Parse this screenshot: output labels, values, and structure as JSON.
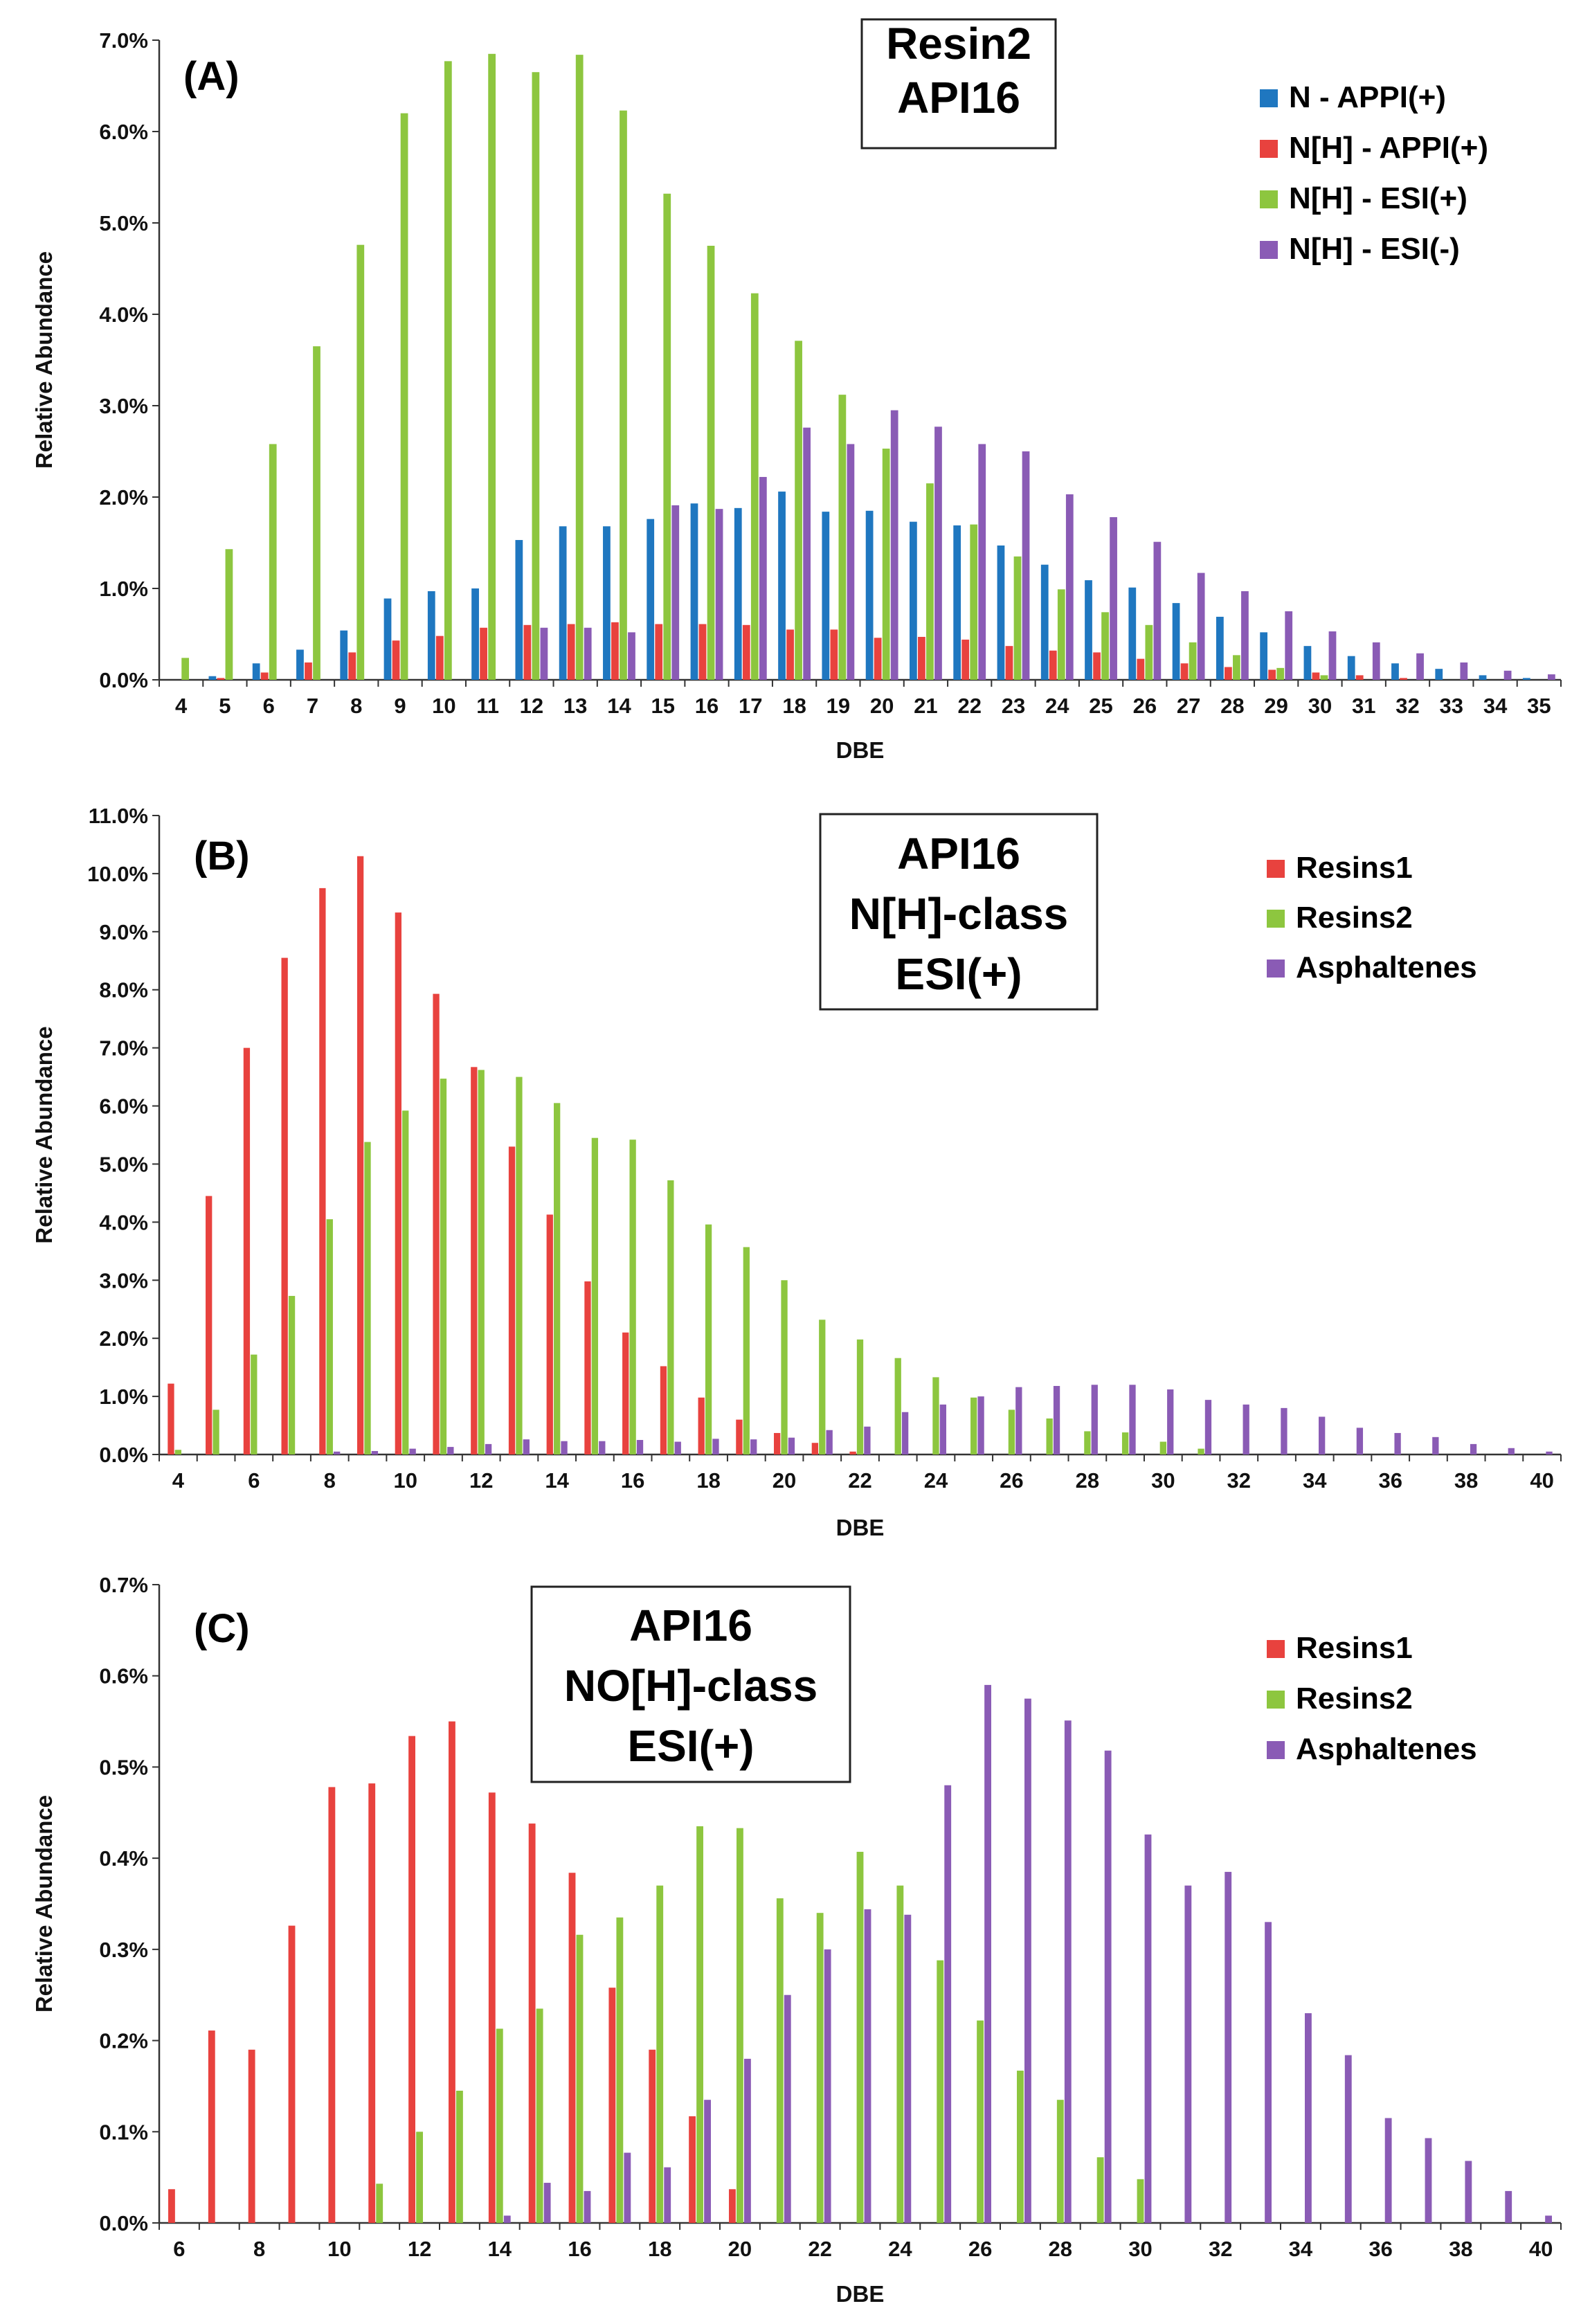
{
  "chart_data": [
    {
      "type": "bar",
      "panel_label": "(A)",
      "annotation": [
        "Resin2",
        "API16"
      ],
      "xlabel": "DBE",
      "ylabel": "Relative Abundance",
      "ylim": [
        0,
        7.0
      ],
      "ytick_step": 1.0,
      "ytick_decimals": 1,
      "ytick_suffix": "%",
      "grid": false,
      "legend_position": "top-right",
      "categories": [
        4,
        5,
        6,
        7,
        8,
        9,
        10,
        11,
        12,
        13,
        14,
        15,
        16,
        17,
        18,
        19,
        20,
        21,
        22,
        23,
        24,
        25,
        26,
        27,
        28,
        29,
        30,
        31,
        32,
        33,
        34,
        35
      ],
      "x_tick_labels": [
        "4",
        "5",
        "6",
        "7",
        "8",
        "9",
        "10",
        "11",
        "12",
        "13",
        "14",
        "15",
        "16",
        "17",
        "18",
        "19",
        "20",
        "21",
        "22",
        "23",
        "24",
        "25",
        "26",
        "27",
        "28",
        "29",
        "30",
        "31",
        "32",
        "33",
        "34",
        "35"
      ],
      "series": [
        {
          "name": "N - APPI(+)",
          "color": "#1f77c0",
          "values": [
            0.0,
            0.04,
            0.18,
            0.33,
            0.54,
            0.89,
            0.97,
            1.0,
            1.53,
            1.68,
            1.68,
            1.76,
            1.93,
            1.88,
            2.06,
            1.84,
            1.85,
            1.73,
            1.69,
            1.47,
            1.26,
            1.09,
            1.01,
            0.84,
            0.69,
            0.52,
            0.37,
            0.26,
            0.18,
            0.12,
            0.05,
            0.02
          ]
        },
        {
          "name": "N[H] - APPI(+)",
          "color": "#e8423e",
          "values": [
            0.0,
            0.02,
            0.08,
            0.19,
            0.3,
            0.43,
            0.48,
            0.57,
            0.6,
            0.61,
            0.63,
            0.61,
            0.61,
            0.6,
            0.55,
            0.55,
            0.46,
            0.47,
            0.44,
            0.37,
            0.32,
            0.3,
            0.23,
            0.18,
            0.14,
            0.11,
            0.08,
            0.05,
            0.02,
            0.0,
            0.0,
            0.0
          ]
        },
        {
          "name": "N[H] - ESI(+)",
          "color": "#8dc63f",
          "values": [
            0.24,
            1.43,
            2.58,
            3.65,
            4.76,
            6.2,
            6.77,
            6.85,
            6.65,
            6.84,
            6.23,
            5.32,
            4.75,
            4.23,
            3.71,
            3.12,
            2.53,
            2.15,
            1.7,
            1.35,
            0.99,
            0.74,
            0.6,
            0.41,
            0.27,
            0.13,
            0.05,
            0.0,
            0.0,
            0.0,
            0.0,
            0.0
          ]
        },
        {
          "name": "N[H] - ESI(-)",
          "color": "#8a5bb5",
          "values": [
            0.0,
            0.0,
            0.0,
            0.0,
            0.0,
            0.0,
            0.0,
            0.0,
            0.57,
            0.57,
            0.52,
            1.91,
            1.87,
            2.22,
            2.76,
            2.58,
            2.95,
            2.77,
            2.58,
            2.5,
            2.03,
            1.78,
            1.51,
            1.17,
            0.97,
            0.75,
            0.53,
            0.41,
            0.29,
            0.19,
            0.1,
            0.06
          ]
        }
      ]
    },
    {
      "type": "bar",
      "panel_label": "(B)",
      "annotation": [
        "API16",
        "N[H]-class",
        "ESI(+)"
      ],
      "xlabel": "DBE",
      "ylabel": "Relative Abundance",
      "ylim": [
        0,
        11.0
      ],
      "ytick_step": 1.0,
      "ytick_decimals": 1,
      "ytick_suffix": "%",
      "grid": false,
      "legend_position": "top-right",
      "categories": [
        4,
        5,
        6,
        7,
        8,
        9,
        10,
        11,
        12,
        13,
        14,
        15,
        16,
        17,
        18,
        19,
        20,
        21,
        22,
        23,
        24,
        25,
        26,
        27,
        28,
        29,
        30,
        31,
        32,
        33,
        34,
        35,
        36,
        37,
        38,
        39,
        40
      ],
      "x_tick_labels": [
        "4",
        "",
        "6",
        "",
        "8",
        "",
        "10",
        "",
        "12",
        "",
        "14",
        "",
        "16",
        "",
        "18",
        "",
        "20",
        "",
        "22",
        "",
        "24",
        "",
        "26",
        "",
        "28",
        "",
        "30",
        "",
        "32",
        "",
        "34",
        "",
        "36",
        "",
        "38",
        "",
        "40"
      ],
      "series": [
        {
          "name": "Resins1",
          "color": "#e8423e",
          "values": [
            1.22,
            4.45,
            7.0,
            8.55,
            9.75,
            10.3,
            9.33,
            7.93,
            6.67,
            5.3,
            4.13,
            2.98,
            2.1,
            1.52,
            0.98,
            0.6,
            0.37,
            0.2,
            0.05,
            0.0,
            0.0,
            0.0,
            0.0,
            0.0,
            0.0,
            0.0,
            0.0,
            0.0,
            0.0,
            0.0,
            0.0,
            0.0,
            0.0,
            0.0,
            0.0,
            0.0,
            0.0
          ]
        },
        {
          "name": "Resins2",
          "color": "#8dc63f",
          "values": [
            0.08,
            0.77,
            1.72,
            2.73,
            4.05,
            5.38,
            5.92,
            6.47,
            6.62,
            6.5,
            6.05,
            5.45,
            5.42,
            4.72,
            3.96,
            3.57,
            3.0,
            2.32,
            1.98,
            1.66,
            1.33,
            0.98,
            0.77,
            0.62,
            0.4,
            0.38,
            0.22,
            0.1,
            0.0,
            0.0,
            0.0,
            0.0,
            0.0,
            0.0,
            0.0,
            0.0,
            0.0
          ]
        },
        {
          "name": "Asphaltenes",
          "color": "#8a5bb5",
          "values": [
            0.0,
            0.0,
            0.0,
            0.0,
            0.05,
            0.06,
            0.1,
            0.13,
            0.18,
            0.26,
            0.23,
            0.23,
            0.25,
            0.22,
            0.27,
            0.26,
            0.29,
            0.42,
            0.48,
            0.73,
            0.86,
            1.0,
            1.16,
            1.18,
            1.2,
            1.2,
            1.12,
            0.94,
            0.86,
            0.8,
            0.65,
            0.46,
            0.37,
            0.3,
            0.18,
            0.11,
            0.05
          ]
        }
      ]
    },
    {
      "type": "bar",
      "panel_label": "(C)",
      "annotation": [
        "API16",
        "NO[H]-class",
        "ESI(+)"
      ],
      "xlabel": "DBE",
      "ylabel": "Relative Abundance",
      "ylim": [
        0,
        0.7
      ],
      "ytick_step": 0.1,
      "ytick_decimals": 1,
      "ytick_suffix": "%",
      "grid": false,
      "legend_position": "top-right",
      "categories": [
        6,
        7,
        8,
        9,
        10,
        11,
        12,
        13,
        14,
        15,
        16,
        17,
        18,
        19,
        20,
        21,
        22,
        23,
        24,
        25,
        26,
        27,
        28,
        29,
        30,
        31,
        32,
        33,
        34,
        35,
        36,
        37,
        38,
        39,
        40
      ],
      "x_tick_labels": [
        "6",
        "",
        "8",
        "",
        "10",
        "",
        "12",
        "",
        "14",
        "",
        "16",
        "",
        "18",
        "",
        "20",
        "",
        "22",
        "",
        "24",
        "",
        "26",
        "",
        "28",
        "",
        "30",
        "",
        "32",
        "",
        "34",
        "",
        "36",
        "",
        "38",
        "",
        "40"
      ],
      "series": [
        {
          "name": "Resins1",
          "color": "#e8423e",
          "values": [
            0.037,
            0.211,
            0.19,
            0.326,
            0.478,
            0.482,
            0.534,
            0.55,
            0.472,
            0.438,
            0.384,
            0.258,
            0.19,
            0.117,
            0.037,
            0.0,
            0.0,
            0.0,
            0.0,
            0.0,
            0.0,
            0.0,
            0.0,
            0.0,
            0.0,
            0.0,
            0.0,
            0.0,
            0.0,
            0.0,
            0.0,
            0.0,
            0.0,
            0.0,
            0.0
          ]
        },
        {
          "name": "Resins2",
          "color": "#8dc63f",
          "values": [
            0.0,
            0.0,
            0.0,
            0.0,
            0.0,
            0.043,
            0.1,
            0.145,
            0.213,
            0.235,
            0.316,
            0.335,
            0.37,
            0.435,
            0.433,
            0.356,
            0.34,
            0.407,
            0.37,
            0.288,
            0.222,
            0.167,
            0.135,
            0.072,
            0.048,
            0.0,
            0.0,
            0.0,
            0.0,
            0.0,
            0.0,
            0.0,
            0.0,
            0.0,
            0.0
          ]
        },
        {
          "name": "Asphaltenes",
          "color": "#8a5bb5",
          "values": [
            0.0,
            0.0,
            0.0,
            0.0,
            0.0,
            0.0,
            0.0,
            0.0,
            0.008,
            0.044,
            0.035,
            0.077,
            0.061,
            0.135,
            0.18,
            0.25,
            0.3,
            0.344,
            0.338,
            0.48,
            0.59,
            0.575,
            0.551,
            0.518,
            0.426,
            0.37,
            0.385,
            0.33,
            0.23,
            0.184,
            0.115,
            0.093,
            0.068,
            0.035,
            0.008
          ]
        }
      ]
    }
  ]
}
